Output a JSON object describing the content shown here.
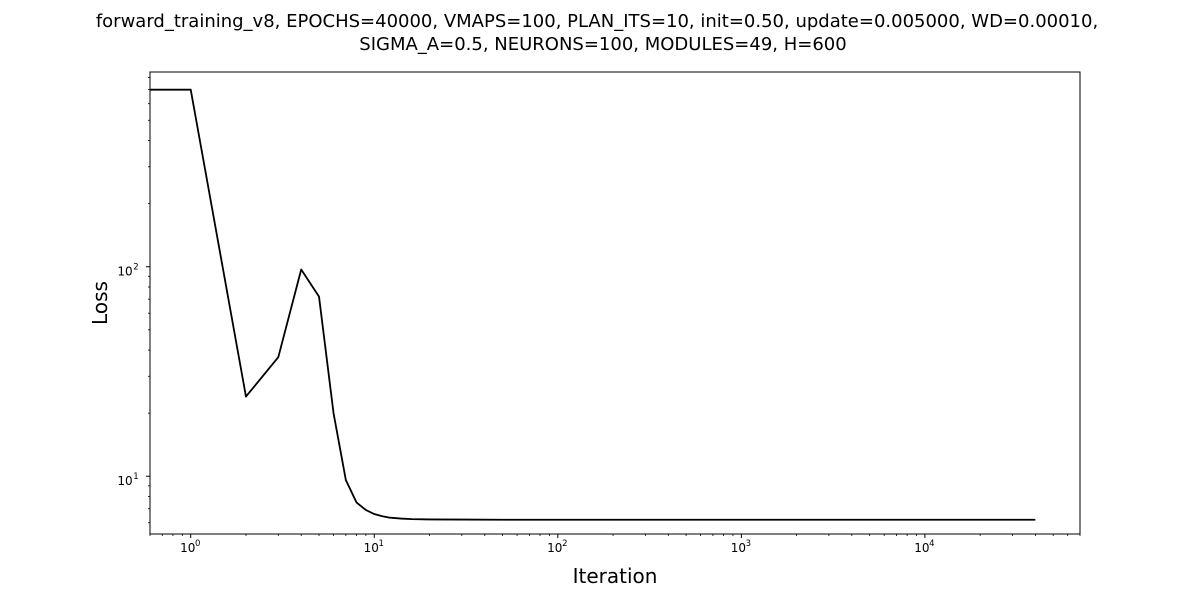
{
  "chart_data": {
    "type": "line",
    "title": "forward_training_v8, EPOCHS=40000, VMAPS=100, PLAN_ITS=10, init=0.50, update=0.005000, WD=0.00010,",
    "subtitle": "SIGMA_A=0.5, NEURONS=100, MODULES=49, H=600",
    "xlabel": "Iteration",
    "ylabel": "Loss",
    "xscale": "log",
    "yscale": "log",
    "xlim": [
      0.6,
      70000
    ],
    "ylim": [
      5.3,
      850
    ],
    "grid": false,
    "legend": "none",
    "line_color": "#000000",
    "x_ticks": [
      {
        "base": "10",
        "exp": "0",
        "value": 1
      },
      {
        "base": "10",
        "exp": "1",
        "value": 10
      },
      {
        "base": "10",
        "exp": "2",
        "value": 100
      },
      {
        "base": "10",
        "exp": "3",
        "value": 1000
      },
      {
        "base": "10",
        "exp": "4",
        "value": 10000
      }
    ],
    "y_ticks": [
      {
        "base": "10",
        "exp": "1",
        "value": 10
      },
      {
        "base": "10",
        "exp": "2",
        "value": 100
      }
    ],
    "series": [
      {
        "x": [
          0.6,
          1,
          2,
          3,
          4,
          5,
          6,
          7,
          8,
          9,
          10,
          11,
          12,
          14,
          16,
          20,
          30,
          50,
          100,
          200,
          500,
          1000,
          2000,
          5000,
          10000,
          20000,
          40000
        ],
        "y": [
          700,
          700,
          24,
          37,
          97,
          72,
          20,
          9.6,
          7.5,
          6.9,
          6.6,
          6.45,
          6.35,
          6.28,
          6.24,
          6.22,
          6.21,
          6.2,
          6.2,
          6.2,
          6.2,
          6.2,
          6.2,
          6.2,
          6.2,
          6.2,
          6.2
        ]
      }
    ]
  }
}
